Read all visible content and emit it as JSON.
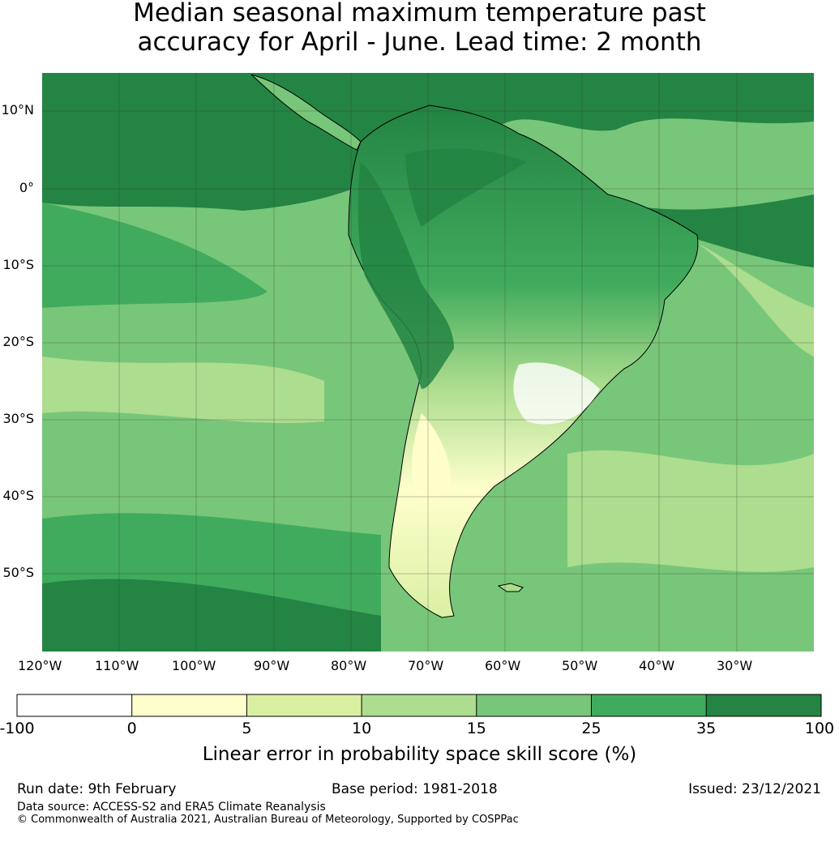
{
  "title": {
    "line1": "Median seasonal maximum temperature past",
    "line2": "accuracy for April - June. Lead time: 2 month"
  },
  "map": {
    "lat_labels": [
      "10°N",
      "0°",
      "10°S",
      "20°S",
      "30°S",
      "40°S",
      "50°S"
    ],
    "lon_labels": [
      "120°W",
      "110°W",
      "100°W",
      "90°W",
      "80°W",
      "70°W",
      "60°W",
      "50°W",
      "40°W",
      "30°W"
    ],
    "colors": {
      "c0": "#ffffff",
      "c1": "#ffffcc",
      "c2": "#d9f0a3",
      "c3": "#addd8e",
      "c4": "#78c679",
      "c5": "#41ab5d",
      "c6": "#238443"
    }
  },
  "colorbar": {
    "ticks": [
      "-100",
      "0",
      "5",
      "10",
      "15",
      "25",
      "35",
      "100"
    ],
    "label": "Linear error in probability space skill score (%)"
  },
  "footer": {
    "run_date": "Run date: 9th February",
    "base_period": "Base period: 1981-2018",
    "issued": "Issued: 23/12/2021",
    "data_source": "Data source: ACCESS-S2 and ERA5 Climate Reanalysis",
    "copyright": "© Commonwealth of Australia 2021, Australian Bureau of Meteorology, Supported by COSPPac"
  }
}
